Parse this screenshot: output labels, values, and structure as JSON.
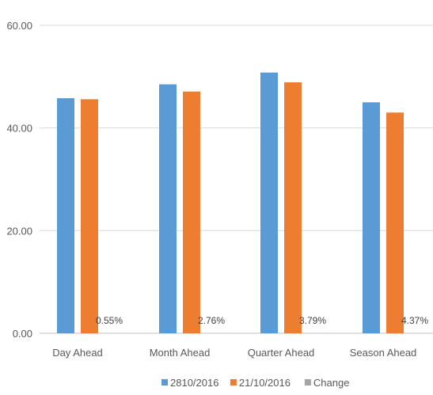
{
  "chart_data": {
    "type": "bar",
    "title": "",
    "categories": [
      "Day Ahead",
      "Month Ahead",
      "Quarter Ahead",
      "Season Ahead"
    ],
    "series": [
      {
        "name": "2810/2016",
        "color": "#5b9bd5",
        "values": [
          45.8,
          48.5,
          50.8,
          45.0
        ]
      },
      {
        "name": "21/10/2016",
        "color": "#ed7d31",
        "values": [
          45.6,
          47.1,
          48.9,
          43.0
        ]
      },
      {
        "name": "Change",
        "color": "#a5a5a5",
        "values": [
          0.55,
          2.76,
          3.79,
          4.37
        ]
      }
    ],
    "change_labels": [
      "0.55%",
      "2.76%",
      "3.79%",
      "4.37%"
    ],
    "ylim": [
      0,
      60
    ],
    "y_ticks": [
      "0.00",
      "20.00",
      "40.00",
      "60.00"
    ],
    "grid": true,
    "legend_position": "bottom"
  }
}
